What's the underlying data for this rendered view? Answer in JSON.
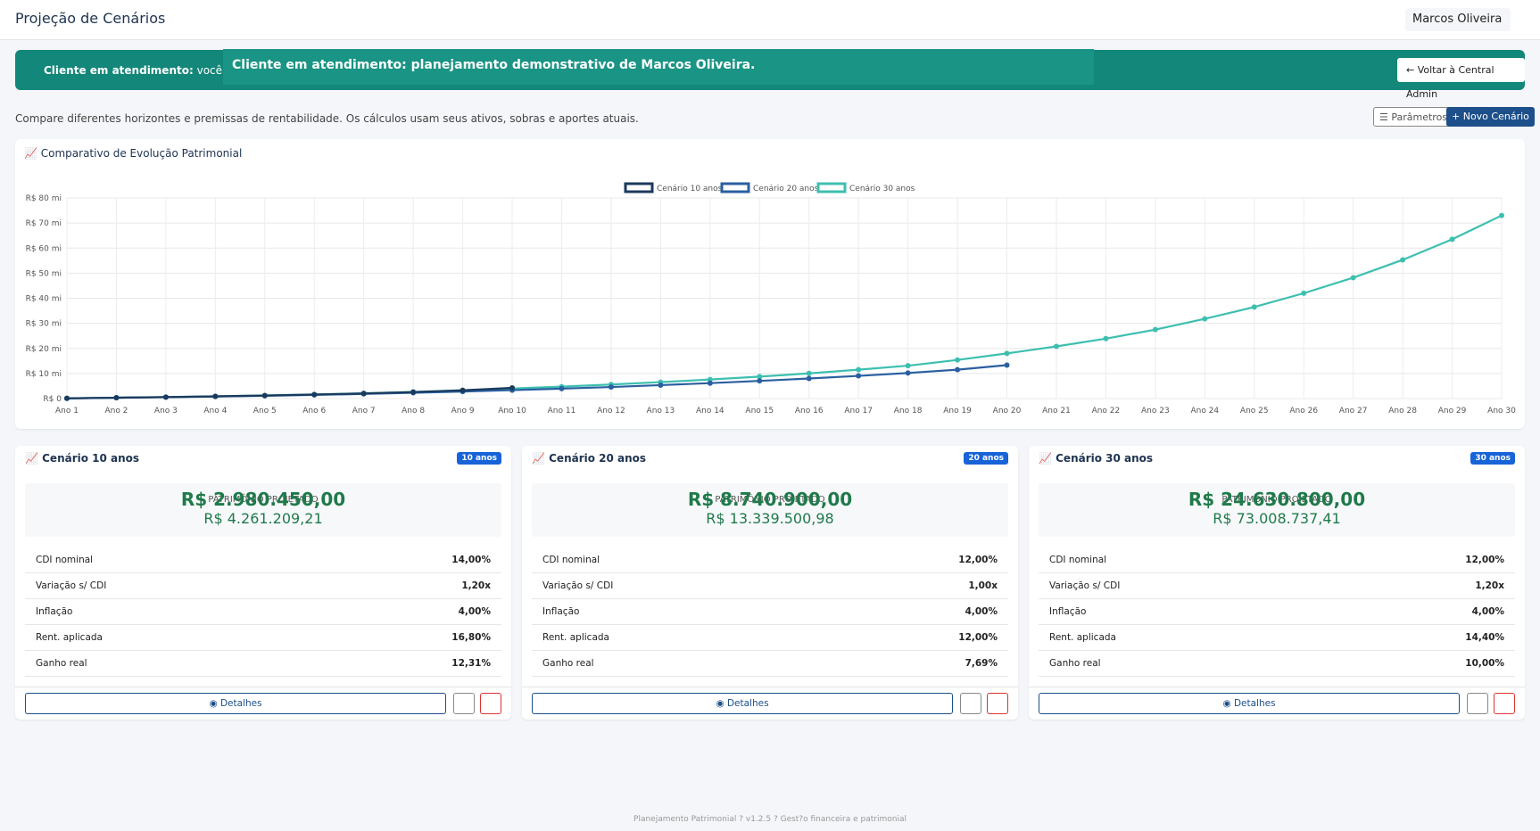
{
  "header": {
    "title": "Projeção de Cenários",
    "user": "Marcos Oliveira"
  },
  "banner": {
    "label": "Cliente em atendimento:",
    "text": "você está v",
    "button": "Voltar à Central Admin"
  },
  "toast": "Cliente em atendimento: planejamento demonstrativo de Marcos Oliveira.",
  "intro": "Compare diferentes horizontes e premissas de rentabilidade. Os cálculos usam seus ativos, sobras e aportes atuais.",
  "actions": [
    "Parâmetros",
    "Novo Cenário"
  ],
  "chart_data": {
    "type": "line",
    "title": "Comparativo de Evolução Patrimonial",
    "categories": [
      "Ano 1",
      "Ano 2",
      "Ano 3",
      "Ano 4",
      "Ano 5",
      "Ano 6",
      "Ano 7",
      "Ano 8",
      "Ano 9",
      "Ano 10",
      "Ano 11",
      "Ano 12",
      "Ano 13",
      "Ano 14",
      "Ano 15",
      "Ano 16",
      "Ano 17",
      "Ano 18",
      "Ano 19",
      "Ano 20",
      "Ano 21",
      "Ano 22",
      "Ano 23",
      "Ano 24",
      "Ano 25",
      "Ano 26",
      "Ano 27",
      "Ano 28",
      "Ano 29",
      "Ano 30"
    ],
    "series": [
      {
        "name": "Cenário 10 anos",
        "color": "#1b3a5c",
        "values": [
          0.1,
          0.35,
          0.6,
          0.9,
          1.2,
          1.6,
          2.05,
          2.6,
          3.3,
          4.26,
          null,
          null,
          null,
          null,
          null,
          null,
          null,
          null,
          null,
          null,
          null,
          null,
          null,
          null,
          null,
          null,
          null,
          null,
          null,
          null
        ]
      },
      {
        "name": "Cenário 20 anos",
        "color": "#2a5fa0",
        "values": [
          0.1,
          0.3,
          0.55,
          0.8,
          1.1,
          1.45,
          1.85,
          2.3,
          2.8,
          3.35,
          3.95,
          4.6,
          5.35,
          6.15,
          7.05,
          8.0,
          9.05,
          10.2,
          11.5,
          13.34,
          null,
          null,
          null,
          null,
          null,
          null,
          null,
          null,
          null,
          null
        ]
      },
      {
        "name": "Cenário 30 anos",
        "color": "#3dbfb0",
        "values": [
          0.1,
          0.35,
          0.6,
          0.9,
          1.25,
          1.65,
          2.1,
          2.65,
          3.3,
          4.0,
          4.75,
          5.6,
          6.55,
          7.6,
          8.75,
          10.05,
          11.5,
          13.1,
          15.4,
          18.0,
          20.8,
          23.9,
          27.5,
          31.8,
          36.5,
          42.0,
          48.2,
          55.3,
          63.5,
          73.0
        ]
      }
    ],
    "ylim": [
      0,
      80
    ],
    "yticks": [
      {
        "value": 0,
        "label": "R$ 0"
      },
      {
        "value": 10,
        "label": "R$ 10 mi"
      },
      {
        "value": 20,
        "label": "R$ 20 mi"
      },
      {
        "value": 30,
        "label": "R$ 30 mi"
      },
      {
        "value": 40,
        "label": "R$ 40 mi"
      },
      {
        "value": 50,
        "label": "R$ 50 mi"
      },
      {
        "value": 60,
        "label": "R$ 60 mi"
      },
      {
        "value": 70,
        "label": "R$ 70 mi"
      },
      {
        "value": 80,
        "label": "R$ 80 mi"
      }
    ],
    "grid": true,
    "legend": "top"
  },
  "cards": [
    {
      "title": "Cenário 10 anos",
      "badge": "10 anos",
      "value": "R$ 2.980.450,00",
      "sublabel": "PATRIMÔNIO PROJETADO",
      "subvalue": "R$ 4.261.209,21",
      "rows": [
        [
          "CDI nominal",
          "14,00%"
        ],
        [
          "Variação s/ CDI",
          "1,20x"
        ],
        [
          "Inflação",
          "4,00%"
        ],
        [
          "Rent. aplicada",
          "16,80%"
        ],
        [
          "Ganho real",
          "12,31%"
        ]
      ],
      "button": "Detalhes"
    },
    {
      "title": "Cenário 20 anos",
      "badge": "20 anos",
      "value": "R$ 8.740.900,00",
      "sublabel": "PATRIMÔNIO PROJETADO",
      "subvalue": "R$ 13.339.500,98",
      "rows": [
        [
          "CDI nominal",
          "12,00%"
        ],
        [
          "Variação s/ CDI",
          "1,00x"
        ],
        [
          "Inflação",
          "4,00%"
        ],
        [
          "Rent. aplicada",
          "12,00%"
        ],
        [
          "Ganho real",
          "7,69%"
        ]
      ],
      "button": "Detalhes"
    },
    {
      "title": "Cenário 30 anos",
      "badge": "30 anos",
      "value": "R$ 24.630.800,00",
      "sublabel": "PATRIMÔNIO PROJETADO",
      "subvalue": "R$ 73.008.737,41",
      "rows": [
        [
          "CDI nominal",
          "12,00%"
        ],
        [
          "Variação s/ CDI",
          "1,20x"
        ],
        [
          "Inflação",
          "4,00%"
        ],
        [
          "Rent. aplicada",
          "14,40%"
        ],
        [
          "Ganho real",
          "10,00%"
        ]
      ],
      "button": "Detalhes"
    }
  ],
  "footer": "Planejamento Patrimonial ? v1.2.5 ? Gest?o financeira e patrimonial"
}
